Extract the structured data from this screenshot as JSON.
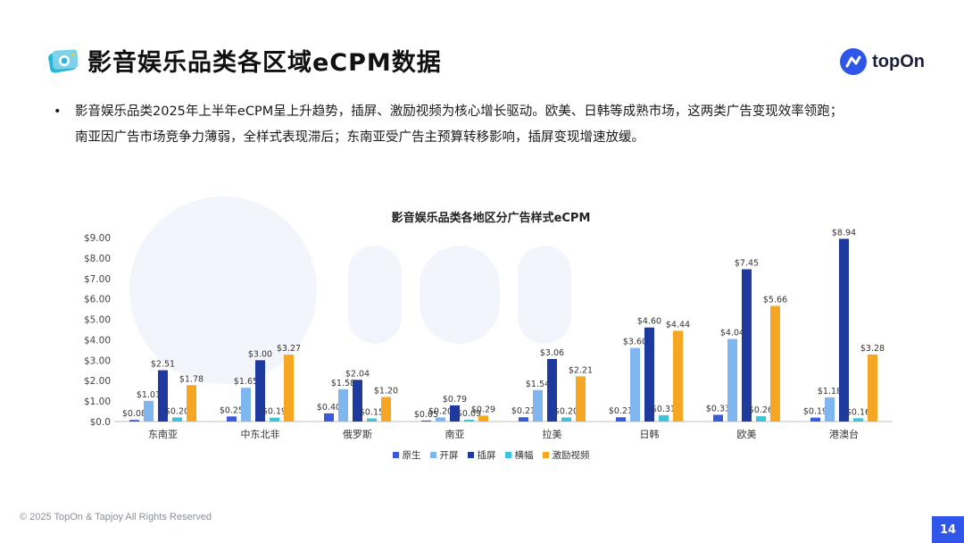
{
  "header": {
    "title": "影音娱乐品类各区域eCPM数据",
    "brand": "topOn",
    "icon": "video-camera-icon"
  },
  "summary": {
    "line1": "影音娱乐品类2025年上半年eCPM呈上升趋势，插屏、激励视频为核心增长驱动。欧美、日韩等成熟市场，这两类广告变现效率领跑；",
    "line2": "南亚因广告市场竞争力薄弱，全样式表现滞后；东南亚受广告主预算转移影响，插屏变现增速放缓。",
    "bullet": "•"
  },
  "footer": {
    "copyright": "© 2025 TopOn & Tapjoy All Rights Reserved",
    "page_number": "14"
  },
  "colors": {
    "accent": "#2f56e8",
    "series": [
      "#3a5bd9",
      "#7fb6f0",
      "#1f3a9e",
      "#3ec3d8",
      "#f5a623"
    ]
  },
  "chart_data": {
    "type": "bar",
    "title": "影音娱乐品类各地区分广告样式eCPM",
    "xlabel": "",
    "ylabel": "",
    "ylim": [
      0,
      9
    ],
    "y_ticks": [
      "$0.0",
      "$1.00",
      "$2.00",
      "$3.00",
      "$4.00",
      "$5.00",
      "$6.00",
      "$7.00",
      "$8.00",
      "$9.00"
    ],
    "legend_position": "bottom",
    "grid": false,
    "categories": [
      "东南亚",
      "中东北非",
      "俄罗斯",
      "南亚",
      "拉美",
      "日韩",
      "欧美",
      "港澳台"
    ],
    "series": [
      {
        "name": "原生",
        "values": [
          0.08,
          0.25,
          0.4,
          0.05,
          0.21,
          0.21,
          0.33,
          0.19
        ]
      },
      {
        "name": "开屏",
        "values": [
          1.01,
          1.65,
          1.58,
          0.2,
          1.54,
          3.6,
          4.04,
          1.18
        ]
      },
      {
        "name": "插屏",
        "values": [
          2.51,
          3.0,
          2.04,
          0.79,
          3.06,
          4.6,
          7.45,
          8.94
        ]
      },
      {
        "name": "横幅",
        "values": [
          0.2,
          0.19,
          0.15,
          0.09,
          0.2,
          0.31,
          0.26,
          0.16
        ]
      },
      {
        "name": "激励视频",
        "values": [
          1.78,
          3.27,
          1.2,
          0.29,
          2.21,
          4.44,
          5.66,
          3.28
        ]
      }
    ],
    "value_labels": [
      [
        "$0.08",
        "$0.25",
        "$0.40",
        "$0.05",
        "$0.21",
        "$0.21",
        "$0.33",
        "$0.19"
      ],
      [
        "$1.01",
        "$1.65",
        "$1.58",
        "$0.20",
        "$1.54",
        "$3.60",
        "$4.04",
        "$1.18"
      ],
      [
        "$2.51",
        "$3.00",
        "$2.04",
        "$0.79",
        "$3.06",
        "$4.60",
        "$7.45",
        "$8.94"
      ],
      [
        "$0.20",
        "$0.19",
        "$0.15",
        "$0.09",
        "$0.20",
        "$0.31",
        "$0.26",
        "$0.16"
      ],
      [
        "$1.78",
        "$3.27",
        "$1.20",
        "$0.29",
        "$2.21",
        "$4.44",
        "$5.66",
        "$3.28"
      ]
    ]
  }
}
